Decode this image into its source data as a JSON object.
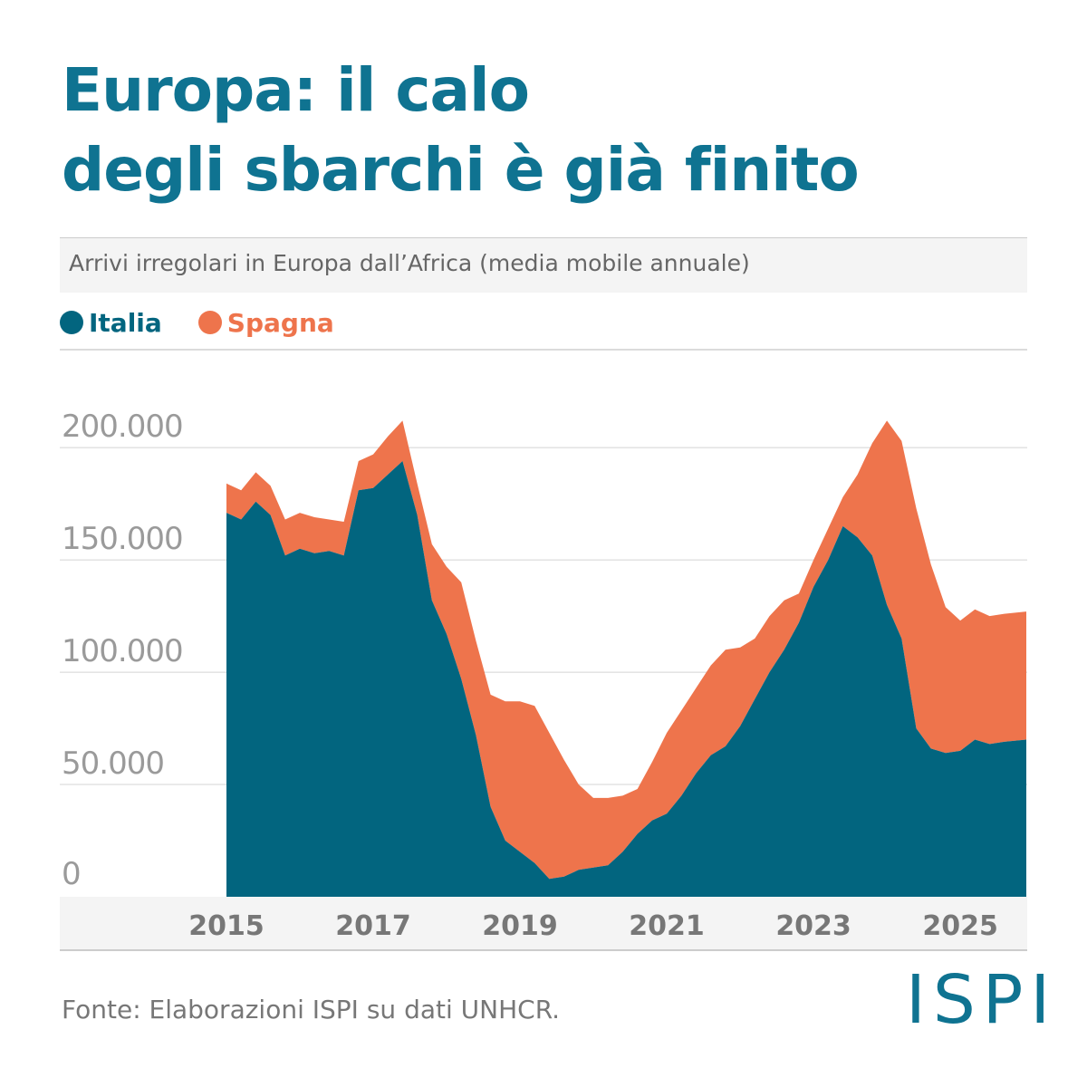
{
  "title_line1": "Europa: il calo",
  "title_line2": "degli sbarchi è già finito",
  "subtitle": "Arrivi irregolari in Europa dall’Africa (media mobile annuale)",
  "source": "Fonte: Elaborazioni ISPI su dati UNHCR.",
  "logo": "ISPI",
  "colors": {
    "title": "#0f7391",
    "italia": "#02657f",
    "spagna": "#ee744c"
  },
  "chart_data": {
    "type": "area",
    "stacked": true,
    "title": "",
    "xlabel": "",
    "ylabel": "",
    "xlim": [
      2015,
      2025.9
    ],
    "ylim": [
      0,
      240000
    ],
    "grid": true,
    "legend_position": "top-left",
    "x_ticks": [
      "2015",
      "2017",
      "2019",
      "2021",
      "2023",
      "2025"
    ],
    "x_tick_values": [
      2015,
      2017,
      2019,
      2021,
      2023,
      2025
    ],
    "y_ticks": [
      0,
      50000,
      100000,
      150000,
      200000
    ],
    "y_tick_labels": [
      "0",
      "50.000",
      "100.000",
      "150.000",
      "200.000"
    ],
    "x": [
      2015.0,
      2015.2,
      2015.4,
      2015.6,
      2015.8,
      2016.0,
      2016.2,
      2016.4,
      2016.6,
      2016.8,
      2017.0,
      2017.2,
      2017.4,
      2017.6,
      2017.8,
      2018.0,
      2018.2,
      2018.4,
      2018.6,
      2018.8,
      2019.0,
      2019.2,
      2019.4,
      2019.6,
      2019.8,
      2020.0,
      2020.2,
      2020.4,
      2020.6,
      2020.8,
      2021.0,
      2021.2,
      2021.4,
      2021.6,
      2021.8,
      2022.0,
      2022.2,
      2022.4,
      2022.6,
      2022.8,
      2023.0,
      2023.2,
      2023.4,
      2023.6,
      2023.8,
      2024.0,
      2024.2,
      2024.4,
      2024.6,
      2024.8,
      2025.0,
      2025.2,
      2025.4,
      2025.6,
      2025.9
    ],
    "series": [
      {
        "name": "Italia",
        "values": [
          171000,
          168000,
          176000,
          170000,
          152000,
          155000,
          153000,
          154000,
          152000,
          181000,
          182000,
          188000,
          194000,
          170000,
          132000,
          117000,
          97000,
          72000,
          40000,
          25000,
          20000,
          15000,
          8000,
          9000,
          12000,
          13000,
          14000,
          20000,
          28000,
          34000,
          37000,
          45000,
          55000,
          63000,
          67000,
          76000,
          88000,
          100000,
          110000,
          122000,
          138000,
          150000,
          165000,
          160000,
          152000,
          130000,
          115000,
          75000,
          66000,
          64000,
          65000,
          70000,
          68000,
          69000,
          70000
        ]
      },
      {
        "name": "Spagna",
        "values": [
          13000,
          13000,
          13000,
          13000,
          16000,
          16000,
          16000,
          14000,
          15000,
          13000,
          15000,
          17000,
          18000,
          14000,
          25000,
          30000,
          43000,
          42000,
          50000,
          62000,
          67000,
          70000,
          65000,
          52000,
          38000,
          31000,
          30000,
          25000,
          20000,
          26000,
          36000,
          38000,
          38000,
          40000,
          43000,
          35000,
          27000,
          25000,
          22000,
          13000,
          12000,
          14000,
          13000,
          28000,
          50000,
          82000,
          88000,
          98000,
          82000,
          65000,
          58000,
          58000,
          57000,
          57000,
          57000
        ]
      }
    ]
  }
}
